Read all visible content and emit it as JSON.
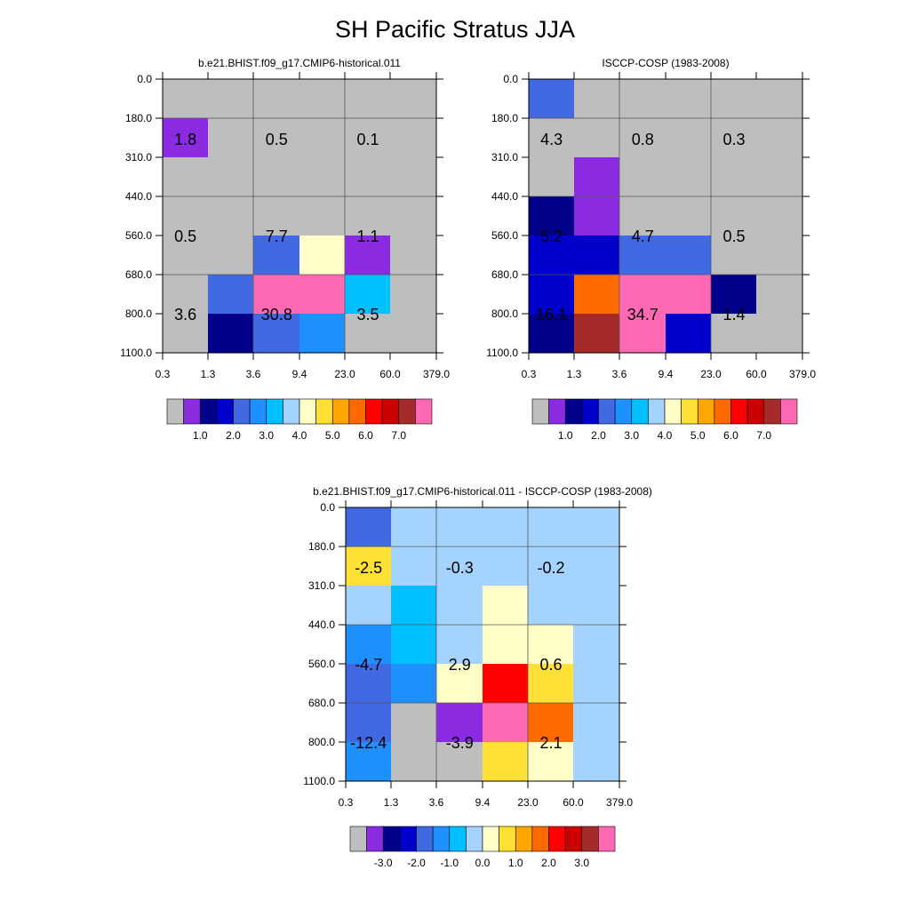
{
  "figure_title": "SH Pacific Stratus JJA",
  "chart_data": [
    {
      "type": "heatmap",
      "title": "b.e21.BHIST.f09_g17.CMIP6-historical.011",
      "x_ticks": [
        "0.3",
        "1.3",
        "3.6",
        "9.4",
        "23.0",
        "60.0",
        "379.0"
      ],
      "y_ticks": [
        "0.0",
        "180.0",
        "310.0",
        "440.0",
        "560.0",
        "680.0",
        "800.0",
        "1100.0"
      ],
      "cell_colors": [
        [
          0,
          0,
          0,
          0,
          0,
          0
        ],
        [
          1,
          0,
          0,
          0,
          0,
          0
        ],
        [
          0,
          0,
          0,
          0,
          0,
          0
        ],
        [
          0,
          0,
          0,
          0,
          0,
          0
        ],
        [
          0,
          0,
          4,
          8,
          1,
          0
        ],
        [
          0,
          4,
          15,
          15,
          6,
          0
        ],
        [
          0,
          2,
          4,
          5,
          0,
          0
        ]
      ],
      "annotations": [
        {
          "row": 0,
          "col": 0,
          "text": "1.8"
        },
        {
          "row": 0,
          "col": 1,
          "text": "0.5"
        },
        {
          "row": 0,
          "col": 2,
          "text": "0.1"
        },
        {
          "row": 1,
          "col": 0,
          "text": "0.5"
        },
        {
          "row": 1,
          "col": 1,
          "text": "7.7"
        },
        {
          "row": 1,
          "col": 2,
          "text": "1.1"
        },
        {
          "row": 2,
          "col": 0,
          "text": "3.6"
        },
        {
          "row": 2,
          "col": 1,
          "text": "30.8"
        },
        {
          "row": 2,
          "col": 2,
          "text": "3.5"
        }
      ],
      "colorbar_labels": [
        "1.0",
        "2.0",
        "3.0",
        "4.0",
        "5.0",
        "6.0",
        "7.0"
      ],
      "palette": [
        "#bebebe",
        "#8a2be2",
        "#00008b",
        "#0000cd",
        "#4169e1",
        "#1e90ff",
        "#00bfff",
        "#a4d3ff",
        "#ffffc8",
        "#ffe135",
        "#ffa500",
        "#ff6a00",
        "#ff0000",
        "#cd0000",
        "#a52a2a",
        "#ff69b4"
      ]
    },
    {
      "type": "heatmap",
      "title": "ISCCP-COSP (1983-2008)",
      "x_ticks": [
        "0.3",
        "1.3",
        "3.6",
        "9.4",
        "23.0",
        "60.0",
        "379.0"
      ],
      "y_ticks": [
        "0.0",
        "180.0",
        "310.0",
        "440.0",
        "560.0",
        "680.0",
        "800.0",
        "1100.0"
      ],
      "cell_colors": [
        [
          4,
          0,
          0,
          0,
          0,
          0
        ],
        [
          0,
          0,
          0,
          0,
          0,
          0
        ],
        [
          0,
          1,
          0,
          0,
          0,
          0
        ],
        [
          2,
          1,
          0,
          0,
          0,
          0
        ],
        [
          3,
          3,
          4,
          4,
          0,
          0
        ],
        [
          3,
          11,
          15,
          15,
          2,
          0
        ],
        [
          2,
          14,
          15,
          3,
          0,
          0
        ]
      ],
      "annotations": [
        {
          "row": 0,
          "col": 0,
          "text": "4.3"
        },
        {
          "row": 0,
          "col": 1,
          "text": "0.8"
        },
        {
          "row": 0,
          "col": 2,
          "text": "0.3"
        },
        {
          "row": 1,
          "col": 0,
          "text": "5.2"
        },
        {
          "row": 1,
          "col": 1,
          "text": "4.7"
        },
        {
          "row": 1,
          "col": 2,
          "text": "0.5"
        },
        {
          "row": 2,
          "col": 0,
          "text": "16.1"
        },
        {
          "row": 2,
          "col": 1,
          "text": "34.7"
        },
        {
          "row": 2,
          "col": 2,
          "text": "1.4"
        }
      ],
      "colorbar_labels": [
        "1.0",
        "2.0",
        "3.0",
        "4.0",
        "5.0",
        "6.0",
        "7.0"
      ],
      "palette": [
        "#bebebe",
        "#8a2be2",
        "#00008b",
        "#0000cd",
        "#4169e1",
        "#1e90ff",
        "#00bfff",
        "#a4d3ff",
        "#ffffc8",
        "#ffe135",
        "#ffa500",
        "#ff6a00",
        "#ff0000",
        "#cd0000",
        "#a52a2a",
        "#ff69b4"
      ]
    },
    {
      "type": "heatmap",
      "title": "b.e21.BHIST.f09_g17.CMIP6-historical.011 - ISCCP-COSP (1983-2008)",
      "x_ticks": [
        "0.3",
        "1.3",
        "3.6",
        "9.4",
        "23.0",
        "60.0",
        "379.0"
      ],
      "y_ticks": [
        "0.0",
        "180.0",
        "310.0",
        "440.0",
        "560.0",
        "680.0",
        "800.0",
        "1100.0"
      ],
      "cell_colors": [
        [
          4,
          7,
          7,
          7,
          7,
          7
        ],
        [
          9,
          7,
          7,
          7,
          7,
          7
        ],
        [
          7,
          6,
          7,
          8,
          7,
          7
        ],
        [
          5,
          6,
          7,
          8,
          8,
          7
        ],
        [
          4,
          5,
          8,
          12,
          9,
          7
        ],
        [
          4,
          0,
          1,
          15,
          11,
          7
        ],
        [
          5,
          0,
          0,
          9,
          8,
          7
        ]
      ],
      "annotations": [
        {
          "row": 0,
          "col": 0,
          "text": "-2.5"
        },
        {
          "row": 0,
          "col": 1,
          "text": "-0.3"
        },
        {
          "row": 0,
          "col": 2,
          "text": "-0.2"
        },
        {
          "row": 1,
          "col": 0,
          "text": "-4.7"
        },
        {
          "row": 1,
          "col": 1,
          "text": "2.9"
        },
        {
          "row": 1,
          "col": 2,
          "text": "0.6"
        },
        {
          "row": 2,
          "col": 0,
          "text": "-12.4"
        },
        {
          "row": 2,
          "col": 1,
          "text": "-3.9"
        },
        {
          "row": 2,
          "col": 2,
          "text": "2.1"
        }
      ],
      "colorbar_labels": [
        "-3.0",
        "-2.0",
        "-1.0",
        "0.0",
        "1.0",
        "2.0",
        "3.0"
      ],
      "palette": [
        "#bebebe",
        "#8a2be2",
        "#00008b",
        "#0000cd",
        "#4169e1",
        "#1e90ff",
        "#00bfff",
        "#a4d3ff",
        "#ffffc8",
        "#ffe135",
        "#ffa500",
        "#ff6a00",
        "#ff0000",
        "#cd0000",
        "#a52a2a",
        "#ff69b4"
      ]
    }
  ]
}
